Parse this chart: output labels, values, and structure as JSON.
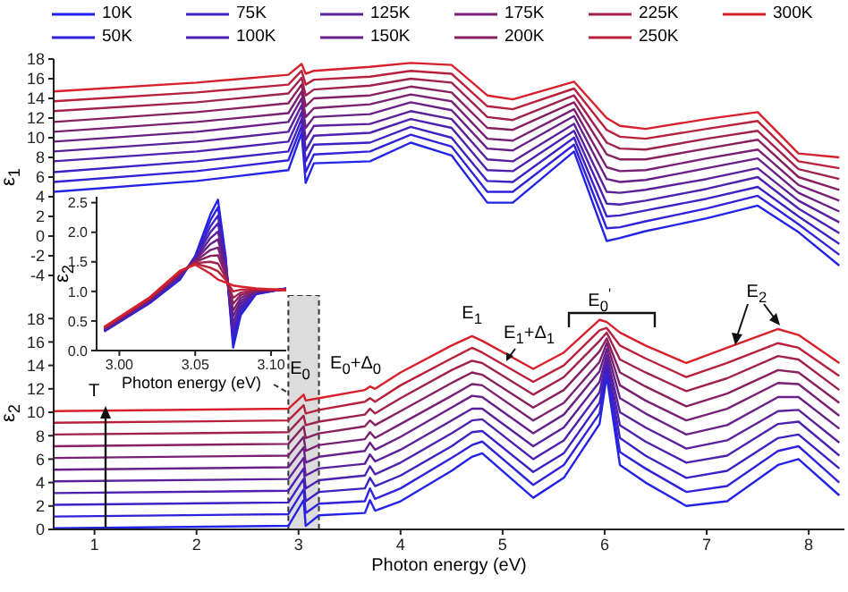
{
  "chart_data": [
    {
      "type": "line",
      "ylabel": "ε$_{1}$",
      "legend": "top",
      "tick_labels": "y",
      "xlim": [
        0.6,
        8.35
      ],
      "xticks": [
        1,
        2,
        3,
        4,
        5,
        6,
        7,
        8
      ],
      "ylim": [
        -6,
        18
      ],
      "yticks": [
        -4,
        -2,
        0,
        2,
        4,
        6,
        8,
        10,
        12,
        14,
        16,
        18
      ],
      "x": [
        0.6,
        2.0,
        2.9,
        3.03,
        3.07,
        3.15,
        3.7,
        4.1,
        4.5,
        4.85,
        5.1,
        5.7,
        6.02,
        6.15,
        6.4,
        7.0,
        7.5,
        7.9,
        8.3
      ],
      "series": [
        {
          "name": "10K",
          "color": "#2323e8",
          "values": [
            4.5,
            5.6,
            6.7,
            10.5,
            5.4,
            7.4,
            7.6,
            9.5,
            8.2,
            3.4,
            3.4,
            8.6,
            -0.5,
            -0.2,
            0.5,
            1.8,
            3.1,
            0.4,
            -3.0
          ]
        },
        {
          "name": "50K",
          "color": "#3022d8",
          "values": [
            5.5,
            6.6,
            7.7,
            11.2,
            6.5,
            8.3,
            8.6,
            10.3,
            9.1,
            4.5,
            4.5,
            9.3,
            0.8,
            0.9,
            1.5,
            2.8,
            4.1,
            1.2,
            -1.9
          ]
        },
        {
          "name": "75K",
          "color": "#3e21c4",
          "values": [
            6.5,
            7.6,
            8.6,
            11.9,
            7.6,
            9.3,
            9.5,
            11.1,
            10.0,
            5.6,
            5.5,
            10.0,
            2.0,
            2.1,
            2.6,
            3.8,
            5.0,
            2.0,
            -0.8
          ]
        },
        {
          "name": "100K",
          "color": "#4c20b0",
          "values": [
            7.6,
            8.6,
            9.6,
            12.6,
            8.7,
            10.2,
            10.5,
            11.9,
            11.0,
            6.7,
            6.6,
            10.7,
            3.3,
            3.2,
            3.6,
            4.8,
            6.0,
            2.8,
            0.3
          ]
        },
        {
          "name": "125K",
          "color": "#5a209c",
          "values": [
            8.6,
            9.6,
            10.6,
            13.3,
            9.8,
            11.2,
            11.4,
            12.7,
            11.9,
            7.8,
            7.6,
            11.4,
            4.5,
            4.4,
            4.7,
            5.8,
            6.9,
            3.6,
            1.4
          ]
        },
        {
          "name": "150K",
          "color": "#682088",
          "values": [
            9.6,
            10.6,
            11.6,
            14.0,
            11.0,
            12.1,
            12.4,
            13.6,
            12.8,
            8.9,
            8.7,
            12.2,
            5.8,
            5.5,
            5.7,
            6.9,
            7.9,
            4.4,
            2.5
          ]
        },
        {
          "name": "175K",
          "color": "#782074",
          "values": [
            10.6,
            11.6,
            12.5,
            14.7,
            12.1,
            13.0,
            13.4,
            14.4,
            13.7,
            9.9,
            9.7,
            12.9,
            7.0,
            6.6,
            6.7,
            7.9,
            8.8,
            5.2,
            3.6
          ]
        },
        {
          "name": "200K",
          "color": "#882060",
          "values": [
            11.6,
            12.6,
            13.5,
            15.4,
            13.2,
            14.0,
            14.3,
            15.2,
            14.6,
            11.0,
            10.8,
            13.6,
            8.3,
            7.8,
            7.8,
            8.9,
            9.8,
            6.0,
            4.7
          ]
        },
        {
          "name": "225K",
          "color": "#a0204e",
          "values": [
            12.7,
            13.6,
            14.5,
            16.1,
            14.3,
            14.9,
            15.3,
            16.0,
            15.6,
            12.1,
            11.8,
            14.3,
            9.5,
            8.9,
            8.8,
            9.9,
            10.7,
            6.8,
            5.8
          ]
        },
        {
          "name": "250K",
          "color": "#b8203c",
          "values": [
            13.7,
            14.6,
            15.4,
            16.8,
            15.4,
            15.9,
            16.2,
            16.8,
            16.5,
            13.2,
            12.9,
            15.0,
            10.8,
            10.1,
            9.9,
            10.9,
            11.7,
            7.6,
            6.9
          ]
        },
        {
          "name": "300K",
          "color": "#d8202c",
          "values": [
            14.7,
            15.6,
            16.4,
            17.5,
            16.5,
            16.8,
            17.2,
            17.6,
            17.4,
            14.3,
            13.9,
            15.7,
            12.0,
            11.2,
            10.9,
            11.9,
            12.6,
            8.4,
            8.0
          ]
        }
      ]
    },
    {
      "type": "line",
      "xlabel": "Photon energy (eV)",
      "ylabel": "ε$_{2}$",
      "xlim": [
        2.985,
        3.11
      ],
      "xticks": [
        {
          "value": 3.0,
          "label": "3.00"
        },
        {
          "value": 3.05,
          "label": "3.05"
        },
        {
          "value": 3.1,
          "label": "3.10"
        }
      ],
      "ylim": [
        0,
        2.6
      ],
      "yticks": [
        {
          "value": 0,
          "label": "0.0"
        },
        {
          "value": 0.5,
          "label": "0.5"
        },
        {
          "value": 1.0,
          "label": "1.0"
        },
        {
          "value": 1.5,
          "label": "1.5"
        },
        {
          "value": 2.0,
          "label": "2.0"
        },
        {
          "value": 2.5,
          "label": "2.5"
        }
      ],
      "x": [
        2.99,
        3.02,
        3.04,
        3.05,
        3.06,
        3.065,
        3.07,
        3.075,
        3.08,
        3.09,
        3.11
      ],
      "series": [
        {
          "color": "#2323e8",
          "values": [
            0.32,
            0.8,
            1.2,
            1.6,
            2.3,
            2.55,
            1.6,
            0.05,
            0.6,
            0.95,
            1.05
          ]
        },
        {
          "color": "#3022d8",
          "values": [
            0.33,
            0.81,
            1.22,
            1.59,
            2.2,
            2.42,
            1.56,
            0.16,
            0.65,
            0.96,
            1.05
          ]
        },
        {
          "color": "#3e21c4",
          "values": [
            0.34,
            0.82,
            1.23,
            1.57,
            2.1,
            2.28,
            1.51,
            0.26,
            0.7,
            0.97,
            1.04
          ]
        },
        {
          "color": "#4c20b0",
          "values": [
            0.34,
            0.83,
            1.25,
            1.56,
            2.0,
            2.15,
            1.47,
            0.37,
            0.74,
            0.98,
            1.04
          ]
        },
        {
          "color": "#5a209c",
          "values": [
            0.35,
            0.84,
            1.26,
            1.54,
            1.9,
            2.01,
            1.42,
            0.47,
            0.79,
            0.99,
            1.04
          ]
        },
        {
          "color": "#682088",
          "values": [
            0.36,
            0.85,
            1.28,
            1.53,
            1.8,
            1.88,
            1.38,
            0.58,
            0.84,
            1.0,
            1.04
          ]
        },
        {
          "color": "#782074",
          "values": [
            0.37,
            0.86,
            1.29,
            1.51,
            1.7,
            1.74,
            1.33,
            0.68,
            0.89,
            1.01,
            1.03
          ]
        },
        {
          "color": "#882060",
          "values": [
            0.38,
            0.87,
            1.31,
            1.5,
            1.6,
            1.61,
            1.29,
            0.79,
            0.94,
            1.02,
            1.03
          ]
        },
        {
          "color": "#a0204e",
          "values": [
            0.38,
            0.88,
            1.32,
            1.48,
            1.5,
            1.47,
            1.24,
            0.89,
            0.98,
            1.03,
            1.03
          ]
        },
        {
          "color": "#b8203c",
          "values": [
            0.39,
            0.89,
            1.34,
            1.47,
            1.4,
            1.34,
            1.2,
            1.0,
            1.03,
            1.04,
            1.02
          ]
        },
        {
          "color": "#d8202c",
          "values": [
            0.4,
            0.9,
            1.35,
            1.45,
            1.3,
            1.2,
            1.15,
            1.1,
            1.08,
            1.05,
            1.02
          ]
        }
      ]
    },
    {
      "type": "line",
      "xlabel": "Photon energy (eV)",
      "ylabel": "ε$_{2}$",
      "xlim": [
        0.6,
        8.35
      ],
      "xticks": [
        1,
        2,
        3,
        4,
        5,
        6,
        7,
        8
      ],
      "ylim": [
        0,
        20
      ],
      "yticks": [
        0,
        2,
        4,
        6,
        8,
        10,
        12,
        14,
        16,
        18
      ],
      "bands": [
        {
          "axis": "x",
          "from": 2.9,
          "to": 3.2
        }
      ],
      "annotations": [
        {
          "text": "E$_{0}$",
          "x": 3.05,
          "y": 11.5
        },
        {
          "text": "E$_{0}$+Δ$_{0}$",
          "x": 3.7,
          "y": 12.2
        },
        {
          "text": "E$_{1}$",
          "x": 4.7,
          "y": 16.5
        },
        {
          "text": "E$_{1}$+Δ$_{1}$",
          "x": 5.05,
          "y": 14.3
        },
        {
          "text": "E$_{0}$$^{'}$",
          "x": 5.95,
          "y": 17.9
        },
        {
          "text": "E$_{2}$",
          "x": 7.7,
          "y": 17.1
        },
        {
          "text": "T",
          "x": 1.1,
          "y": 10.1
        }
      ],
      "x": [
        0.6,
        2.9,
        3.05,
        3.07,
        3.2,
        3.65,
        3.7,
        3.75,
        4.0,
        4.5,
        4.7,
        4.8,
        5.3,
        5.6,
        5.95,
        6.02,
        6.15,
        6.4,
        6.8,
        7.2,
        7.7,
        7.9,
        8.3
      ],
      "series": [
        {
          "color": "#2323e8",
          "values": [
            0.1,
            0.3,
            2.5,
            0.3,
            1.2,
            1.4,
            2.5,
            1.6,
            2.4,
            5.0,
            6.2,
            6.5,
            2.7,
            4.4,
            9.0,
            13.1,
            5.5,
            4.0,
            2.0,
            2.4,
            5.5,
            6.0,
            2.9
          ]
        },
        {
          "color": "#3022d8",
          "values": [
            1.1,
            1.3,
            3.4,
            1.4,
            2.2,
            2.4,
            3.5,
            2.6,
            3.5,
            6.1,
            7.2,
            7.5,
            3.8,
            5.5,
            9.9,
            13.6,
            6.6,
            5.2,
            3.2,
            3.7,
            6.7,
            7.1,
            4.0
          ]
        },
        {
          "color": "#3e21c4",
          "values": [
            2.1,
            2.3,
            4.3,
            2.4,
            3.2,
            3.5,
            4.4,
            3.7,
            4.6,
            7.1,
            8.3,
            8.4,
            4.9,
            6.5,
            10.8,
            14.0,
            7.8,
            6.3,
            4.4,
            5.0,
            7.8,
            8.1,
            5.2
          ]
        },
        {
          "color": "#4c20b0",
          "values": [
            3.1,
            3.3,
            5.2,
            3.5,
            4.2,
            4.6,
            5.4,
            4.7,
            5.7,
            8.2,
            9.3,
            9.4,
            6.0,
            7.6,
            11.7,
            14.5,
            8.9,
            7.5,
            5.7,
            6.3,
            9.0,
            9.2,
            6.3
          ]
        },
        {
          "color": "#5a209c",
          "values": [
            4.1,
            4.3,
            6.1,
            4.6,
            5.2,
            5.6,
            6.4,
            5.8,
            6.8,
            9.3,
            10.3,
            10.3,
            7.1,
            8.7,
            12.6,
            14.9,
            10.0,
            8.7,
            6.9,
            7.6,
            10.1,
            10.2,
            7.4
          ]
        },
        {
          "color": "#682088",
          "values": [
            5.1,
            5.3,
            7.0,
            5.7,
            6.2,
            6.7,
            7.4,
            6.8,
            7.9,
            10.4,
            11.4,
            11.3,
            8.2,
            9.8,
            13.5,
            15.4,
            11.2,
            9.9,
            8.1,
            8.9,
            11.3,
            11.3,
            8.6
          ]
        },
        {
          "color": "#782074",
          "values": [
            6.1,
            6.3,
            7.9,
            6.7,
            7.2,
            7.7,
            8.3,
            7.8,
            9.0,
            11.4,
            12.4,
            12.3,
            9.3,
            10.8,
            14.3,
            15.9,
            12.3,
            11.0,
            9.3,
            10.3,
            12.5,
            12.4,
            9.7
          ]
        },
        {
          "color": "#882060",
          "values": [
            7.1,
            7.3,
            8.8,
            7.8,
            8.2,
            8.8,
            9.3,
            8.9,
            10.1,
            12.5,
            13.4,
            13.2,
            10.4,
            11.9,
            15.2,
            16.3,
            13.4,
            12.2,
            10.5,
            11.6,
            13.6,
            13.4,
            10.8
          ]
        },
        {
          "color": "#a0204e",
          "values": [
            8.1,
            8.3,
            9.7,
            8.9,
            9.2,
            9.8,
            10.3,
            9.9,
            11.2,
            13.6,
            14.4,
            14.2,
            11.5,
            13.0,
            16.1,
            16.8,
            14.5,
            13.4,
            11.8,
            12.9,
            14.8,
            14.5,
            11.9
          ]
        },
        {
          "color": "#b8203c",
          "values": [
            9.1,
            9.3,
            10.6,
            9.9,
            10.2,
            10.9,
            11.2,
            10.9,
            12.3,
            14.6,
            15.5,
            15.1,
            12.6,
            14.0,
            17.0,
            17.2,
            15.7,
            14.6,
            13.0,
            14.2,
            15.9,
            15.5,
            13.1
          ]
        },
        {
          "color": "#d8202c",
          "values": [
            10.1,
            10.3,
            11.5,
            11.0,
            11.2,
            11.9,
            12.2,
            12.0,
            13.4,
            15.7,
            16.5,
            16.1,
            13.7,
            15.1,
            17.9,
            17.7,
            16.8,
            15.7,
            14.2,
            15.5,
            17.1,
            16.6,
            14.2
          ]
        }
      ]
    }
  ]
}
